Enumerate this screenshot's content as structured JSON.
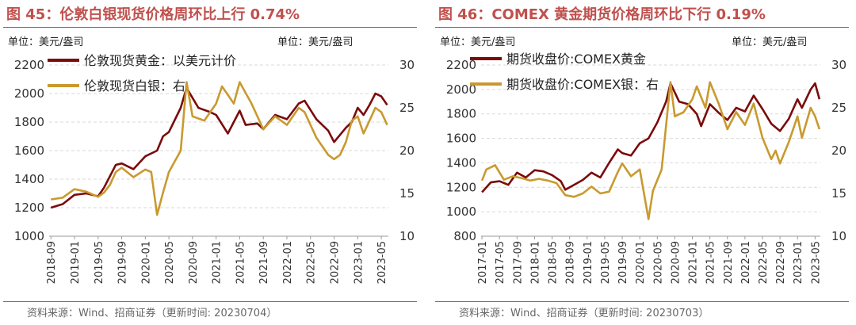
{
  "colors": {
    "gold": "#7b0b0b",
    "silver": "#c89a2f",
    "title": "#c0504d",
    "grid": "#d9d9d9"
  },
  "panels": [
    {
      "title": "图 45：伦敦白银现货价格周环比上行 0.74%",
      "unit_left": "单位：美元/盎司",
      "unit_right": "单位：美元/盎司",
      "source": "资料来源：Wind、招商证券（更新时间: 20230704）"
    },
    {
      "title": "图 46：COMEX 黄金期货价格周环比下行 0.19%",
      "unit_left": "单位：美元/盎司",
      "unit_right": "单位：美元/盎司",
      "source": "资料来源：Wind、招商证券（更新时间: 20230703）"
    }
  ],
  "chart_data": [
    {
      "type": "line",
      "x_ticks": [
        "2018-09",
        "2019-01",
        "2019-05",
        "2019-09",
        "2020-01",
        "2020-05",
        "2020-09",
        "2021-01",
        "2021-05",
        "2021-09",
        "2022-01",
        "2022-05",
        "2022-09",
        "2023-01",
        "2023-05"
      ],
      "y_left": {
        "min": 1000,
        "max": 2200,
        "ticks": [
          1000,
          1200,
          1400,
          1600,
          1800,
          2000,
          2200
        ]
      },
      "y_right": {
        "min": 10,
        "max": 30,
        "ticks": [
          10,
          15,
          20,
          25,
          30
        ]
      },
      "legend": "top-left",
      "series": [
        {
          "name": "伦敦现货黄金：以美元计价",
          "axis": "left",
          "x": [
            "2018-09",
            "2018-11",
            "2019-01",
            "2019-03",
            "2019-05",
            "2019-06",
            "2019-08",
            "2019-09",
            "2019-11",
            "2020-01",
            "2020-03",
            "2020-04",
            "2020-05",
            "2020-07",
            "2020-08",
            "2020-10",
            "2020-12",
            "2021-01",
            "2021-03",
            "2021-05",
            "2021-06",
            "2021-08",
            "2021-09",
            "2021-11",
            "2022-01",
            "2022-03",
            "2022-04",
            "2022-06",
            "2022-08",
            "2022-09",
            "2022-11",
            "2022-12",
            "2023-01",
            "2023-02",
            "2023-03",
            "2023-04",
            "2023-05",
            "2023-06"
          ],
          "y": [
            1200,
            1225,
            1290,
            1300,
            1280,
            1340,
            1500,
            1510,
            1470,
            1560,
            1600,
            1700,
            1730,
            1900,
            2040,
            1900,
            1870,
            1850,
            1720,
            1880,
            1780,
            1790,
            1750,
            1850,
            1820,
            1930,
            1950,
            1820,
            1740,
            1660,
            1760,
            1800,
            1900,
            1850,
            1920,
            2000,
            1980,
            1920
          ]
        },
        {
          "name": "伦敦现货白银：右",
          "axis": "right",
          "x": [
            "2018-09",
            "2018-11",
            "2019-01",
            "2019-03",
            "2019-05",
            "2019-06",
            "2019-07",
            "2019-08",
            "2019-09",
            "2019-11",
            "2020-01",
            "2020-02",
            "2020-03",
            "2020-04",
            "2020-05",
            "2020-07",
            "2020-08",
            "2020-09",
            "2020-11",
            "2021-01",
            "2021-02",
            "2021-04",
            "2021-05",
            "2021-07",
            "2021-09",
            "2021-11",
            "2022-01",
            "2022-03",
            "2022-04",
            "2022-06",
            "2022-08",
            "2022-09",
            "2022-10",
            "2022-11",
            "2022-12",
            "2023-01",
            "2023-02",
            "2023-03",
            "2023-04",
            "2023-05",
            "2023-06"
          ],
          "y": [
            14.3,
            14.5,
            15.5,
            15.2,
            14.6,
            15.1,
            16.0,
            17.5,
            18.0,
            16.9,
            17.8,
            17.5,
            12.5,
            15.1,
            17.5,
            20.0,
            28.0,
            24.0,
            23.5,
            25.5,
            27.5,
            25.5,
            28.0,
            25.5,
            22.5,
            24.0,
            23.0,
            25.0,
            24.5,
            21.5,
            19.5,
            19.0,
            19.5,
            21.0,
            23.5,
            24.0,
            22.0,
            23.5,
            25.0,
            24.5,
            23.0
          ]
        }
      ]
    },
    {
      "type": "line",
      "x_ticks": [
        "2017-01",
        "2017-05",
        "2017-09",
        "2018-01",
        "2018-05",
        "2018-09",
        "2019-01",
        "2019-05",
        "2019-09",
        "2020-01",
        "2020-05",
        "2020-09",
        "2021-01",
        "2021-05",
        "2021-09",
        "2022-01",
        "2022-05",
        "2022-09",
        "2023-01",
        "2023-05"
      ],
      "y_left": {
        "min": 800,
        "max": 2200,
        "ticks": [
          800,
          1000,
          1200,
          1400,
          1600,
          1800,
          2000,
          2200
        ]
      },
      "y_right": {
        "min": 10,
        "max": 30,
        "ticks": [
          10,
          15,
          20,
          25,
          30
        ]
      },
      "legend": "top-left",
      "series": [
        {
          "name": "期货收盘价:COMEX黄金",
          "axis": "left",
          "x": [
            "2017-01",
            "2017-03",
            "2017-05",
            "2017-07",
            "2017-09",
            "2017-11",
            "2018-01",
            "2018-03",
            "2018-05",
            "2018-07",
            "2018-08",
            "2018-10",
            "2018-12",
            "2019-02",
            "2019-04",
            "2019-06",
            "2019-08",
            "2019-09",
            "2019-11",
            "2020-01",
            "2020-03",
            "2020-05",
            "2020-07",
            "2020-08",
            "2020-10",
            "2020-12",
            "2021-02",
            "2021-03",
            "2021-05",
            "2021-07",
            "2021-09",
            "2021-11",
            "2022-01",
            "2022-03",
            "2022-05",
            "2022-07",
            "2022-09",
            "2022-11",
            "2023-01",
            "2023-02",
            "2023-04",
            "2023-05",
            "2023-06"
          ],
          "y": [
            1160,
            1240,
            1250,
            1220,
            1320,
            1280,
            1340,
            1330,
            1300,
            1250,
            1180,
            1220,
            1260,
            1320,
            1280,
            1400,
            1510,
            1480,
            1460,
            1560,
            1600,
            1730,
            1900,
            2050,
            1900,
            1880,
            1800,
            1700,
            1880,
            1810,
            1750,
            1850,
            1820,
            1950,
            1840,
            1720,
            1660,
            1760,
            1920,
            1850,
            2000,
            2050,
            1920
          ]
        },
        {
          "name": "期货收盘价:COMEX银：右",
          "axis": "right",
          "x": [
            "2017-01",
            "2017-02",
            "2017-04",
            "2017-06",
            "2017-08",
            "2017-10",
            "2017-12",
            "2018-02",
            "2018-04",
            "2018-06",
            "2018-08",
            "2018-10",
            "2018-12",
            "2019-02",
            "2019-04",
            "2019-06",
            "2019-08",
            "2019-09",
            "2019-11",
            "2020-01",
            "2020-03",
            "2020-04",
            "2020-06",
            "2020-08",
            "2020-09",
            "2020-11",
            "2021-01",
            "2021-02",
            "2021-04",
            "2021-05",
            "2021-07",
            "2021-09",
            "2021-11",
            "2022-01",
            "2022-03",
            "2022-05",
            "2022-07",
            "2022-08",
            "2022-09",
            "2022-11",
            "2023-01",
            "2023-02",
            "2023-04",
            "2023-05",
            "2023-06"
          ],
          "y": [
            16.5,
            17.8,
            18.3,
            16.6,
            17.0,
            16.8,
            16.5,
            16.7,
            16.5,
            16.2,
            14.8,
            14.6,
            15.0,
            15.8,
            15.0,
            15.2,
            17.5,
            18.5,
            17.0,
            17.8,
            12.0,
            15.3,
            17.8,
            28.0,
            24.0,
            24.5,
            26.0,
            27.5,
            25.0,
            28.0,
            25.5,
            22.5,
            24.5,
            23.0,
            25.5,
            21.5,
            19.0,
            20.0,
            18.5,
            21.0,
            24.0,
            21.5,
            25.0,
            24.0,
            22.5
          ]
        }
      ]
    }
  ]
}
